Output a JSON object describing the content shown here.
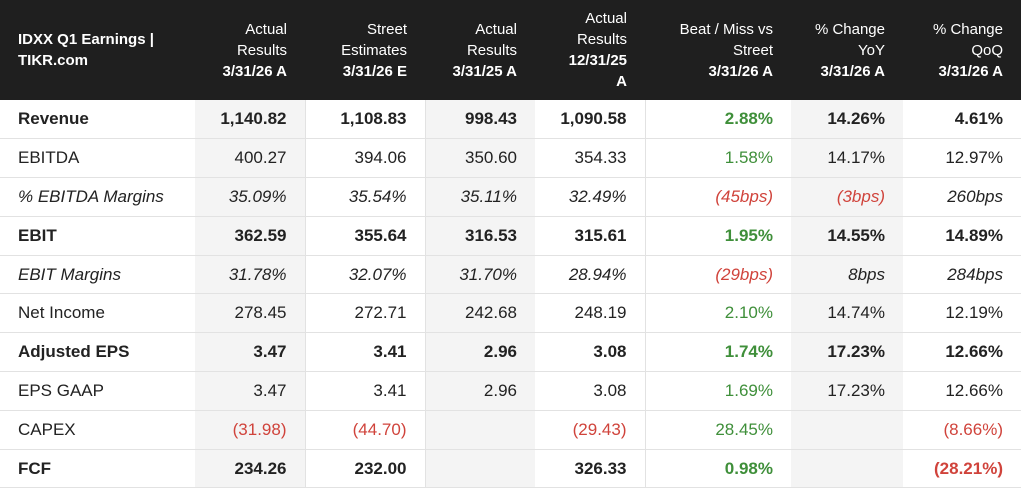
{
  "header": {
    "title_line1": "IDXX Q1 Earnings |",
    "title_line2": "TIKR.com",
    "columns": [
      {
        "line1": "Actual",
        "line2": "Results",
        "line3": "3/31/26 A"
      },
      {
        "line1": "Street",
        "line2": "Estimates",
        "line3": "3/31/26 E"
      },
      {
        "line1": "Actual",
        "line2": "Results",
        "line3": "3/31/25 A"
      },
      {
        "line1": "Actual",
        "line2": "Results",
        "line3": "12/31/25",
        "line4": "A"
      },
      {
        "line1": "Beat / Miss vs",
        "line2": "Street",
        "line3": "3/31/26 A"
      },
      {
        "line1": "% Change",
        "line2": "YoY",
        "line3": "3/31/26 A"
      },
      {
        "line1": "% Change",
        "line2": "QoQ",
        "line3": "3/31/26 A"
      }
    ]
  },
  "rows": [
    {
      "label": "Revenue",
      "values": [
        "1,140.82",
        "1,108.83",
        "998.43",
        "1,090.58",
        "2.88%",
        "14.26%",
        "4.61%"
      ]
    },
    {
      "label": "EBITDA",
      "values": [
        "400.27",
        "394.06",
        "350.60",
        "354.33",
        "1.58%",
        "14.17%",
        "12.97%"
      ]
    },
    {
      "label": "% EBITDA Margins",
      "values": [
        "35.09%",
        "35.54%",
        "35.11%",
        "32.49%",
        "(45bps)",
        "(3bps)",
        "260bps"
      ]
    },
    {
      "label": "EBIT",
      "values": [
        "362.59",
        "355.64",
        "316.53",
        "315.61",
        "1.95%",
        "14.55%",
        "14.89%"
      ]
    },
    {
      "label": "EBIT Margins",
      "values": [
        "31.78%",
        "32.07%",
        "31.70%",
        "28.94%",
        "(29bps)",
        "8bps",
        "284bps"
      ]
    },
    {
      "label": "Net Income",
      "values": [
        "278.45",
        "272.71",
        "242.68",
        "248.19",
        "2.10%",
        "14.74%",
        "12.19%"
      ]
    },
    {
      "label": "Adjusted EPS",
      "values": [
        "3.47",
        "3.41",
        "2.96",
        "3.08",
        "1.74%",
        "17.23%",
        "12.66%"
      ]
    },
    {
      "label": "EPS GAAP",
      "values": [
        "3.47",
        "3.41",
        "2.96",
        "3.08",
        "1.69%",
        "17.23%",
        "12.66%"
      ]
    },
    {
      "label": "CAPEX",
      "values": [
        "(31.98)",
        "(44.70)",
        "",
        "(29.43)",
        "28.45%",
        "",
        "(8.66%)"
      ]
    },
    {
      "label": "FCF",
      "values": [
        "234.26",
        "232.00",
        "",
        "326.33",
        "0.98%",
        "",
        "(28.21%)"
      ]
    }
  ],
  "colors": {
    "header_bg": "#1f1f1f",
    "positive": "#3f8f3a",
    "negative": "#d0433b",
    "shade": "#f4f4f4"
  }
}
